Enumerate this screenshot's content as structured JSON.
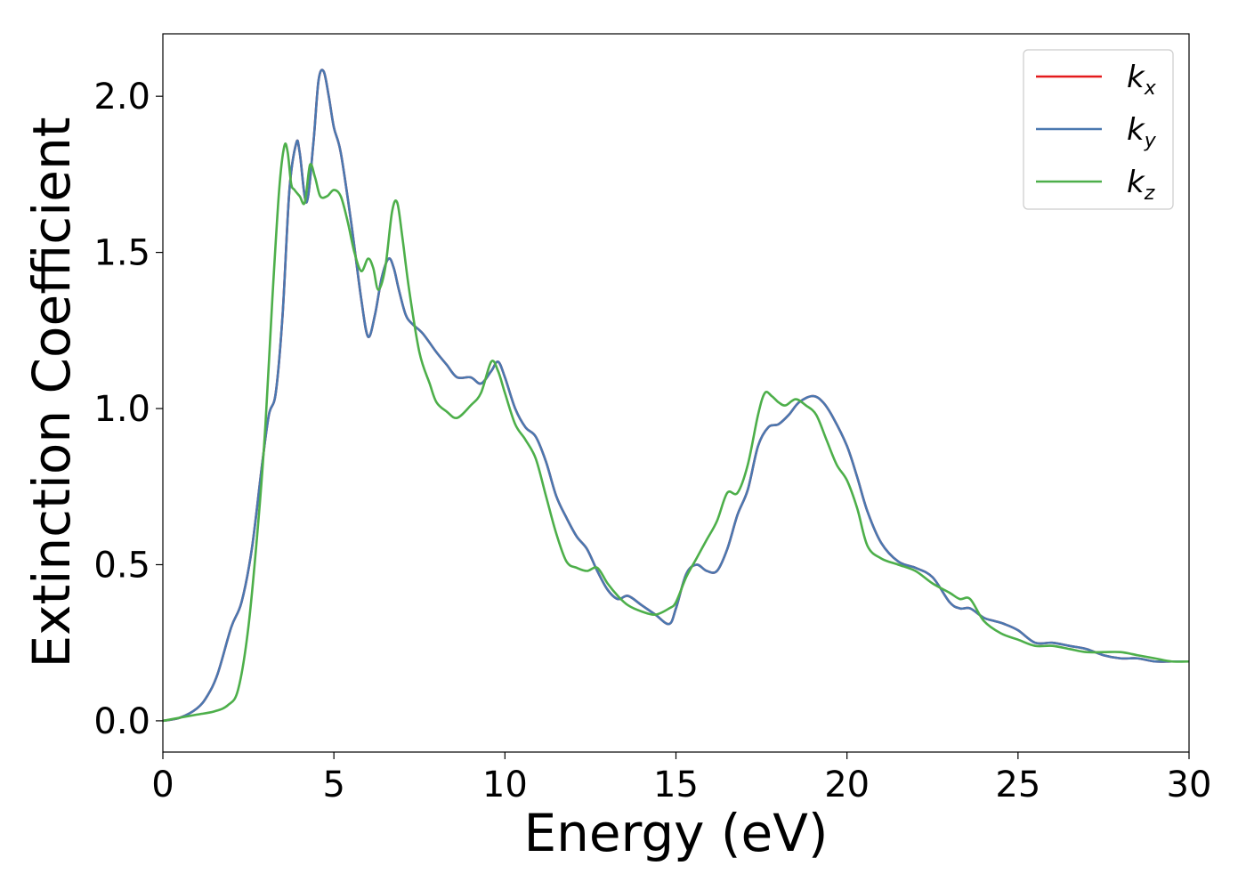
{
  "chart_data": {
    "type": "line",
    "xlabel": "Energy (eV)",
    "ylabel": "Extinction Coefficient",
    "xlim": [
      0,
      30
    ],
    "ylim": [
      -0.1,
      2.2
    ],
    "xticks": [
      0,
      5,
      10,
      15,
      20,
      25,
      30
    ],
    "xtick_labels": [
      "0",
      "5",
      "10",
      "15",
      "20",
      "25",
      "30"
    ],
    "yticks": [
      0.0,
      0.5,
      1.0,
      1.5,
      2.0
    ],
    "ytick_labels": [
      "0.0",
      "0.5",
      "1.0",
      "1.5",
      "2.0"
    ],
    "grid": false,
    "legend_position": "top-right",
    "series": [
      {
        "name": "k_x",
        "legend_main": "k",
        "legend_sub": "x",
        "color": "#e41a1c",
        "x": [
          0,
          0.5,
          1.0,
          1.3,
          1.6,
          2.0,
          2.3,
          2.6,
          2.9,
          3.1,
          3.3,
          3.5,
          3.7,
          3.9,
          4.0,
          4.2,
          4.4,
          4.55,
          4.7,
          4.85,
          5.0,
          5.2,
          5.5,
          5.8,
          6.0,
          6.2,
          6.4,
          6.6,
          6.75,
          6.9,
          7.1,
          7.3,
          7.6,
          8.0,
          8.3,
          8.6,
          9.0,
          9.3,
          9.6,
          9.8,
          10.0,
          10.3,
          10.6,
          10.9,
          11.2,
          11.5,
          11.8,
          12.1,
          12.4,
          12.7,
          13.0,
          13.3,
          13.6,
          14.0,
          14.4,
          14.8,
          15.0,
          15.3,
          15.6,
          15.9,
          16.2,
          16.5,
          16.8,
          17.1,
          17.4,
          17.7,
          18.0,
          18.3,
          18.6,
          19.0,
          19.3,
          19.6,
          20.0,
          20.3,
          20.6,
          21.0,
          21.5,
          22.0,
          22.5,
          23.0,
          23.3,
          23.6,
          24.0,
          24.3,
          24.6,
          25.0,
          25.5,
          26.0,
          26.5,
          27.0,
          27.5,
          28.0,
          28.5,
          29.0,
          29.5,
          30.0
        ],
        "y": [
          0.0,
          0.01,
          0.04,
          0.08,
          0.15,
          0.3,
          0.38,
          0.55,
          0.82,
          0.98,
          1.05,
          1.3,
          1.7,
          1.85,
          1.82,
          1.66,
          1.85,
          2.05,
          2.08,
          2.0,
          1.9,
          1.82,
          1.6,
          1.35,
          1.23,
          1.3,
          1.42,
          1.48,
          1.45,
          1.38,
          1.3,
          1.27,
          1.24,
          1.18,
          1.14,
          1.1,
          1.1,
          1.08,
          1.12,
          1.15,
          1.1,
          1.0,
          0.94,
          0.91,
          0.83,
          0.72,
          0.65,
          0.59,
          0.55,
          0.48,
          0.42,
          0.39,
          0.4,
          0.37,
          0.34,
          0.31,
          0.36,
          0.47,
          0.5,
          0.48,
          0.48,
          0.55,
          0.66,
          0.74,
          0.88,
          0.94,
          0.95,
          0.98,
          1.02,
          1.04,
          1.02,
          0.97,
          0.88,
          0.78,
          0.67,
          0.57,
          0.51,
          0.49,
          0.46,
          0.38,
          0.36,
          0.36,
          0.33,
          0.32,
          0.31,
          0.29,
          0.25,
          0.25,
          0.24,
          0.23,
          0.21,
          0.2,
          0.2,
          0.19,
          0.19,
          0.19
        ]
      },
      {
        "name": "k_y",
        "legend_main": "k",
        "legend_sub": "y",
        "color": "#4a78b0",
        "x": [
          0,
          0.5,
          1.0,
          1.3,
          1.6,
          2.0,
          2.3,
          2.6,
          2.9,
          3.1,
          3.3,
          3.5,
          3.7,
          3.9,
          4.0,
          4.2,
          4.4,
          4.55,
          4.7,
          4.85,
          5.0,
          5.2,
          5.5,
          5.8,
          6.0,
          6.2,
          6.4,
          6.6,
          6.75,
          6.9,
          7.1,
          7.3,
          7.6,
          8.0,
          8.3,
          8.6,
          9.0,
          9.3,
          9.6,
          9.8,
          10.0,
          10.3,
          10.6,
          10.9,
          11.2,
          11.5,
          11.8,
          12.1,
          12.4,
          12.7,
          13.0,
          13.3,
          13.6,
          14.0,
          14.4,
          14.8,
          15.0,
          15.3,
          15.6,
          15.9,
          16.2,
          16.5,
          16.8,
          17.1,
          17.4,
          17.7,
          18.0,
          18.3,
          18.6,
          19.0,
          19.3,
          19.6,
          20.0,
          20.3,
          20.6,
          21.0,
          21.5,
          22.0,
          22.5,
          23.0,
          23.3,
          23.6,
          24.0,
          24.3,
          24.6,
          25.0,
          25.5,
          26.0,
          26.5,
          27.0,
          27.5,
          28.0,
          28.5,
          29.0,
          29.5,
          30.0
        ],
        "y": [
          0.0,
          0.01,
          0.04,
          0.08,
          0.15,
          0.3,
          0.38,
          0.55,
          0.82,
          0.98,
          1.05,
          1.3,
          1.7,
          1.85,
          1.82,
          1.66,
          1.85,
          2.05,
          2.08,
          2.0,
          1.9,
          1.82,
          1.6,
          1.35,
          1.23,
          1.3,
          1.42,
          1.48,
          1.45,
          1.38,
          1.3,
          1.27,
          1.24,
          1.18,
          1.14,
          1.1,
          1.1,
          1.08,
          1.12,
          1.15,
          1.1,
          1.0,
          0.94,
          0.91,
          0.83,
          0.72,
          0.65,
          0.59,
          0.55,
          0.48,
          0.42,
          0.39,
          0.4,
          0.37,
          0.34,
          0.31,
          0.36,
          0.47,
          0.5,
          0.48,
          0.48,
          0.55,
          0.66,
          0.74,
          0.88,
          0.94,
          0.95,
          0.98,
          1.02,
          1.04,
          1.02,
          0.97,
          0.88,
          0.78,
          0.67,
          0.57,
          0.51,
          0.49,
          0.46,
          0.38,
          0.36,
          0.36,
          0.33,
          0.32,
          0.31,
          0.29,
          0.25,
          0.25,
          0.24,
          0.23,
          0.21,
          0.2,
          0.2,
          0.19,
          0.19,
          0.19
        ]
      },
      {
        "name": "k_z",
        "legend_main": "k",
        "legend_sub": "z",
        "color": "#4daf4a",
        "x": [
          0,
          0.5,
          1.0,
          1.5,
          1.9,
          2.2,
          2.5,
          2.8,
          3.0,
          3.2,
          3.4,
          3.55,
          3.65,
          3.75,
          3.85,
          4.0,
          4.15,
          4.3,
          4.45,
          4.6,
          4.8,
          5.0,
          5.2,
          5.4,
          5.6,
          5.8,
          6.0,
          6.15,
          6.3,
          6.5,
          6.7,
          6.85,
          7.0,
          7.2,
          7.5,
          7.8,
          8.0,
          8.3,
          8.6,
          9.0,
          9.3,
          9.6,
          9.8,
          10.0,
          10.3,
          10.6,
          10.9,
          11.2,
          11.5,
          11.8,
          12.1,
          12.4,
          12.7,
          13.0,
          13.3,
          13.6,
          14.0,
          14.4,
          14.8,
          15.0,
          15.3,
          15.6,
          15.9,
          16.2,
          16.5,
          16.8,
          17.1,
          17.4,
          17.6,
          17.8,
          18.0,
          18.2,
          18.5,
          18.8,
          19.1,
          19.4,
          19.7,
          20.0,
          20.3,
          20.6,
          21.0,
          21.5,
          22.0,
          22.5,
          23.0,
          23.3,
          23.6,
          24.0,
          24.5,
          25.0,
          25.5,
          26.0,
          26.5,
          27.0,
          27.5,
          28.0,
          28.5,
          29.0,
          29.5,
          30.0
        ],
        "y": [
          0.0,
          0.01,
          0.02,
          0.03,
          0.05,
          0.1,
          0.3,
          0.65,
          0.95,
          1.35,
          1.7,
          1.84,
          1.82,
          1.72,
          1.7,
          1.68,
          1.66,
          1.78,
          1.74,
          1.68,
          1.68,
          1.7,
          1.68,
          1.6,
          1.5,
          1.44,
          1.48,
          1.45,
          1.38,
          1.45,
          1.63,
          1.66,
          1.55,
          1.38,
          1.18,
          1.08,
          1.02,
          0.99,
          0.97,
          1.01,
          1.05,
          1.15,
          1.12,
          1.05,
          0.95,
          0.9,
          0.84,
          0.72,
          0.6,
          0.51,
          0.49,
          0.48,
          0.49,
          0.44,
          0.4,
          0.37,
          0.35,
          0.34,
          0.36,
          0.38,
          0.46,
          0.52,
          0.58,
          0.64,
          0.73,
          0.73,
          0.82,
          0.98,
          1.05,
          1.04,
          1.02,
          1.01,
          1.03,
          1.01,
          0.98,
          0.9,
          0.82,
          0.77,
          0.68,
          0.56,
          0.52,
          0.5,
          0.48,
          0.44,
          0.41,
          0.39,
          0.39,
          0.32,
          0.28,
          0.26,
          0.24,
          0.24,
          0.23,
          0.22,
          0.22,
          0.22,
          0.21,
          0.2,
          0.19,
          0.19
        ]
      }
    ]
  }
}
